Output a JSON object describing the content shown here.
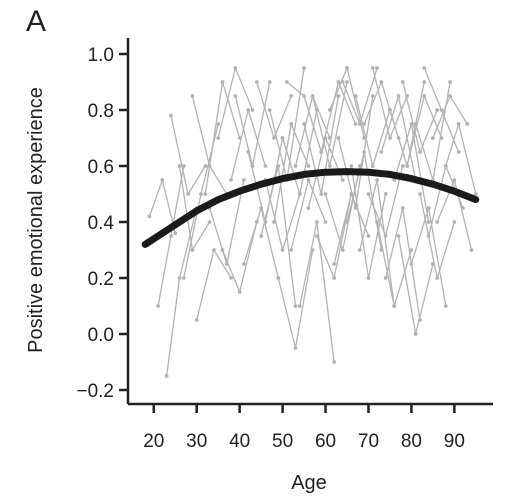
{
  "panel_label": "A",
  "colors": {
    "trend": "#1a1a1a",
    "individual": "#b3b3b3",
    "axis": "#222222"
  },
  "chart_data": {
    "type": "line",
    "title": "",
    "xlabel": "Age",
    "ylabel": "Positive emotional experience",
    "xlim": [
      14,
      99
    ],
    "ylim": [
      -0.25,
      1.05
    ],
    "xticks": [
      "20",
      "30",
      "40",
      "50",
      "60",
      "70",
      "80",
      "90"
    ],
    "yticks": [
      "1.0",
      "0.8",
      "0.6",
      "0.4",
      "0.2",
      "0.0",
      "−0.2"
    ],
    "grid": false,
    "legend": "none",
    "series": [
      {
        "kind": "trend",
        "x": [
          18,
          25,
          30,
          35,
          40,
          45,
          50,
          55,
          60,
          65,
          70,
          75,
          80,
          85,
          90,
          95
        ],
        "y": [
          0.32,
          0.39,
          0.44,
          0.48,
          0.51,
          0.535,
          0.555,
          0.57,
          0.578,
          0.58,
          0.578,
          0.57,
          0.555,
          0.535,
          0.51,
          0.48
        ]
      },
      {
        "kind": "individual",
        "lines": [
          {
            "x": [
              19,
              22,
              25
            ],
            "y": [
              0.42,
              0.55,
              0.36
            ]
          },
          {
            "x": [
              21,
              24,
              27
            ],
            "y": [
              0.1,
              0.35,
              0.6
            ]
          },
          {
            "x": [
              23,
              26,
              30
            ],
            "y": [
              -0.15,
              0.2,
              0.45
            ]
          },
          {
            "x": [
              24,
              28,
              32
            ],
            "y": [
              0.78,
              0.5,
              0.6
            ]
          },
          {
            "x": [
              26,
              29,
              33
            ],
            "y": [
              0.6,
              0.3,
              0.4
            ]
          },
          {
            "x": [
              27,
              31,
              35
            ],
            "y": [
              0.2,
              0.5,
              0.75
            ]
          },
          {
            "x": [
              29,
              33,
              37
            ],
            "y": [
              0.85,
              0.6,
              0.5
            ]
          },
          {
            "x": [
              30,
              34,
              38
            ],
            "y": [
              0.05,
              0.3,
              0.2
            ]
          },
          {
            "x": [
              32,
              36,
              40
            ],
            "y": [
              0.5,
              0.9,
              0.7
            ]
          },
          {
            "x": [
              33,
              37,
              41
            ],
            "y": [
              0.45,
              0.25,
              0.55
            ]
          },
          {
            "x": [
              35,
              39,
              43
            ],
            "y": [
              0.7,
              0.95,
              0.8
            ]
          },
          {
            "x": [
              36,
              40,
              44
            ],
            "y": [
              0.3,
              0.15,
              0.4
            ]
          },
          {
            "x": [
              38,
              42,
              46
            ],
            "y": [
              0.55,
              0.8,
              0.6
            ]
          },
          {
            "x": [
              39,
              43,
              47
            ],
            "y": [
              0.85,
              0.6,
              0.9
            ]
          },
          {
            "x": [
              41,
              45,
              49
            ],
            "y": [
              0.25,
              0.45,
              0.2
            ]
          },
          {
            "x": [
              42,
              46,
              50
            ],
            "y": [
              0.65,
              0.4,
              0.7
            ]
          },
          {
            "x": [
              44,
              48,
              52
            ],
            "y": [
              0.9,
              0.7,
              0.85
            ]
          },
          {
            "x": [
              45,
              49,
              53
            ],
            "y": [
              0.35,
              0.6,
              0.1
            ]
          },
          {
            "x": [
              46,
              50,
              54
            ],
            "y": [
              0.55,
              0.3,
              0.5
            ]
          },
          {
            "x": [
              47,
              51,
              55
            ],
            "y": [
              0.8,
              0.55,
              0.95
            ]
          },
          {
            "x": [
              48,
              52,
              56
            ],
            "y": [
              0.4,
              0.75,
              0.6
            ]
          },
          {
            "x": [
              49,
              53,
              57
            ],
            "y": [
              0.2,
              -0.05,
              0.3
            ]
          },
          {
            "x": [
              50,
              54,
              58
            ],
            "y": [
              0.7,
              0.5,
              0.8
            ]
          },
          {
            "x": [
              51,
              55,
              59
            ],
            "y": [
              0.9,
              0.85,
              0.65
            ]
          },
          {
            "x": [
              52,
              56,
              60
            ],
            "y": [
              0.3,
              0.55,
              0.4
            ]
          },
          {
            "x": [
              53,
              57,
              61
            ],
            "y": [
              0.6,
              0.85,
              0.7
            ]
          },
          {
            "x": [
              54,
              58,
              62
            ],
            "y": [
              0.1,
              0.4,
              -0.1
            ]
          },
          {
            "x": [
              55,
              59,
              63
            ],
            "y": [
              0.75,
              0.5,
              0.85
            ]
          },
          {
            "x": [
              56,
              60,
              64
            ],
            "y": [
              0.45,
              0.7,
              0.55
            ]
          },
          {
            "x": [
              57,
              61,
              65
            ],
            "y": [
              0.85,
              0.6,
              0.9
            ]
          },
          {
            "x": [
              58,
              62,
              66
            ],
            "y": [
              0.35,
              0.2,
              0.5
            ]
          },
          {
            "x": [
              59,
              63,
              67
            ],
            "y": [
              0.65,
              0.9,
              0.75
            ]
          },
          {
            "x": [
              60,
              64,
              68
            ],
            "y": [
              0.5,
              0.3,
              0.6
            ]
          },
          {
            "x": [
              61,
              65,
              69
            ],
            "y": [
              0.8,
              0.95,
              0.7
            ]
          },
          {
            "x": [
              62,
              66,
              70
            ],
            "y": [
              0.25,
              0.5,
              0.35
            ]
          },
          {
            "x": [
              63,
              67,
              71
            ],
            "y": [
              0.7,
              0.45,
              0.85
            ]
          },
          {
            "x": [
              64,
              68,
              72
            ],
            "y": [
              0.9,
              0.75,
              0.95
            ]
          },
          {
            "x": [
              65,
              69,
              73
            ],
            "y": [
              0.4,
              0.65,
              0.3
            ]
          },
          {
            "x": [
              66,
              70,
              74
            ],
            "y": [
              0.6,
              0.2,
              0.5
            ]
          },
          {
            "x": [
              67,
              71,
              75
            ],
            "y": [
              0.85,
              0.6,
              0.8
            ]
          },
          {
            "x": [
              68,
              72,
              76
            ],
            "y": [
              0.3,
              0.55,
              0.1
            ]
          },
          {
            "x": [
              69,
              73,
              77
            ],
            "y": [
              0.75,
              0.9,
              0.7
            ]
          },
          {
            "x": [
              70,
              74,
              78
            ],
            "y": [
              0.5,
              0.35,
              0.6
            ]
          },
          {
            "x": [
              71,
              75,
              79
            ],
            "y": [
              0.95,
              0.7,
              0.85
            ]
          },
          {
            "x": [
              72,
              76,
              80
            ],
            "y": [
              0.4,
              0.1,
              0.3
            ]
          },
          {
            "x": [
              73,
              77,
              81
            ],
            "y": [
              0.65,
              0.85,
              0.55
            ]
          },
          {
            "x": [
              74,
              78,
              82
            ],
            "y": [
              0.2,
              0.45,
              0.05
            ]
          },
          {
            "x": [
              75,
              79,
              83
            ],
            "y": [
              0.8,
              0.6,
              0.9
            ]
          },
          {
            "x": [
              76,
              80,
              84
            ],
            "y": [
              0.55,
              0.75,
              0.4
            ]
          },
          {
            "x": [
              77,
              81,
              85
            ],
            "y": [
              0.35,
              0.0,
              0.25
            ]
          },
          {
            "x": [
              78,
              82,
              86
            ],
            "y": [
              0.9,
              0.65,
              0.8
            ]
          },
          {
            "x": [
              79,
              83,
              87
            ],
            "y": [
              0.6,
              0.85,
              0.7
            ]
          },
          {
            "x": [
              80,
              84,
              88
            ],
            "y": [
              0.25,
              0.45,
              0.1
            ]
          },
          {
            "x": [
              81,
              85,
              89
            ],
            "y": [
              0.75,
              0.55,
              0.9
            ]
          },
          {
            "x": [
              82,
              86,
              90
            ],
            "y": [
              0.5,
              0.2,
              0.4
            ]
          },
          {
            "x": [
              83,
              87,
              91
            ],
            "y": [
              0.95,
              0.8,
              0.65
            ]
          },
          {
            "x": [
              84,
              88,
              92
            ],
            "y": [
              0.35,
              0.6,
              0.45
            ]
          },
          {
            "x": [
              85,
              89,
              93
            ],
            "y": [
              0.7,
              0.85,
              0.75
            ]
          },
          {
            "x": [
              86,
              90,
              94
            ],
            "y": [
              0.4,
              0.55,
              0.3
            ]
          },
          {
            "x": [
              88,
              91,
              95
            ],
            "y": [
              0.6,
              0.75,
              0.5
            ]
          }
        ]
      }
    ]
  }
}
